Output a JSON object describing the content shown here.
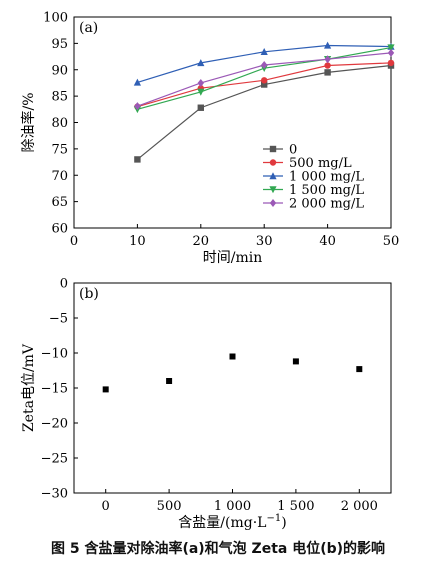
{
  "caption": "图 5  含盐量对除油率(a)和气泡 Zeta 电位(b)的影响",
  "chart_data": [
    {
      "type": "line",
      "panel_label": "(a)",
      "xlabel": "时间/min",
      "ylabel": "除油率/%",
      "xlim": [
        0,
        50
      ],
      "ylim": [
        60,
        100
      ],
      "x_ticks": [
        "0",
        "10",
        "20",
        "30",
        "40",
        "50"
      ],
      "y_ticks": [
        "60",
        "65",
        "70",
        "75",
        "80",
        "85",
        "90",
        "95",
        "100"
      ],
      "grid": false,
      "legend_position": "bottom-right",
      "x": [
        10,
        20,
        30,
        40,
        50
      ],
      "series": [
        {
          "name": "0",
          "color": "#555555",
          "marker": "square",
          "values": [
            73.0,
            82.8,
            87.2,
            89.5,
            90.8
          ]
        },
        {
          "name": "500 mg/L",
          "color": "#e0393e",
          "marker": "circle",
          "values": [
            83.0,
            86.5,
            88.0,
            90.8,
            91.3
          ]
        },
        {
          "name": "1 000 mg/L",
          "color": "#2f5fb5",
          "marker": "triangle-up",
          "values": [
            87.6,
            91.3,
            93.4,
            94.6,
            94.4
          ]
        },
        {
          "name": "1 500 mg/L",
          "color": "#32a852",
          "marker": "triangle-down",
          "values": [
            82.5,
            85.8,
            90.3,
            92.0,
            94.2
          ]
        },
        {
          "name": "2 000 mg/L",
          "color": "#9b59b6",
          "marker": "diamond",
          "values": [
            83.1,
            87.5,
            90.9,
            92.0,
            93.2
          ]
        }
      ]
    },
    {
      "type": "scatter",
      "panel_label": "(b)",
      "xlabel": "含盐量/(mg·L",
      "xlabel_sup": "−1",
      "xlabel_suffix": ")",
      "ylabel": "Zeta电位/mV",
      "xlim": [
        -250,
        2250
      ],
      "ylim": [
        -30,
        0
      ],
      "x_ticks": [
        "0",
        "500",
        "1 000",
        "1 500",
        "2 000"
      ],
      "y_ticks": [
        "0",
        "−5",
        "−10",
        "−15",
        "−20",
        "−25",
        "−30"
      ],
      "grid": false,
      "x": [
        0,
        500,
        1000,
        1500,
        2000
      ],
      "values": [
        -15.2,
        -14.0,
        -10.5,
        -11.2,
        -12.3
      ]
    }
  ]
}
